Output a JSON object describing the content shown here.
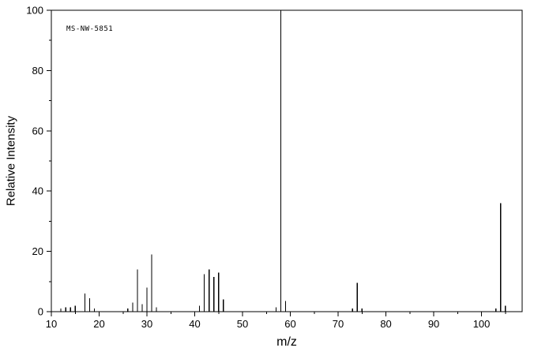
{
  "figure": {
    "annotation": "MS-NW-5851"
  },
  "chart_data": {
    "type": "bar",
    "subtype": "mass-spectrum",
    "title": "",
    "xlabel": "m/z",
    "ylabel": "Relative Intensity",
    "xlim": [
      10,
      108.5
    ],
    "ylim": [
      0,
      100
    ],
    "x_major_ticks": [
      10,
      20,
      30,
      40,
      50,
      60,
      70,
      80,
      90,
      100
    ],
    "x_minor_ticks": [
      15,
      25,
      35,
      45,
      55,
      65,
      75,
      85,
      95,
      105
    ],
    "y_major_ticks": [
      0,
      20,
      40,
      60,
      80,
      100
    ],
    "y_minor_ticks": [
      10,
      30,
      50,
      70,
      90
    ],
    "grid": false,
    "legend": false,
    "peaks": [
      {
        "mz": 12,
        "intensity": 1
      },
      {
        "mz": 13,
        "intensity": 1.5
      },
      {
        "mz": 14,
        "intensity": 1.5
      },
      {
        "mz": 15,
        "intensity": 2
      },
      {
        "mz": 17,
        "intensity": 6
      },
      {
        "mz": 18,
        "intensity": 4.5
      },
      {
        "mz": 19,
        "intensity": 1
      },
      {
        "mz": 26,
        "intensity": 1
      },
      {
        "mz": 27,
        "intensity": 3
      },
      {
        "mz": 28,
        "intensity": 14
      },
      {
        "mz": 29,
        "intensity": 2.5
      },
      {
        "mz": 30,
        "intensity": 8
      },
      {
        "mz": 31,
        "intensity": 19
      },
      {
        "mz": 32,
        "intensity": 1.5
      },
      {
        "mz": 41,
        "intensity": 2
      },
      {
        "mz": 42,
        "intensity": 12.5
      },
      {
        "mz": 43,
        "intensity": 14
      },
      {
        "mz": 44,
        "intensity": 11.5
      },
      {
        "mz": 45,
        "intensity": 13
      },
      {
        "mz": 46,
        "intensity": 4
      },
      {
        "mz": 57,
        "intensity": 1.5
      },
      {
        "mz": 58,
        "intensity": 100
      },
      {
        "mz": 59,
        "intensity": 3.5
      },
      {
        "mz": 73,
        "intensity": 1
      },
      {
        "mz": 74,
        "intensity": 9.5
      },
      {
        "mz": 75,
        "intensity": 1
      },
      {
        "mz": 103,
        "intensity": 1
      },
      {
        "mz": 104,
        "intensity": 36
      },
      {
        "mz": 105,
        "intensity": 2
      }
    ],
    "colors": {
      "axis": "#000000",
      "peak": "#000000",
      "background": "#ffffff",
      "text": "#000000"
    }
  }
}
